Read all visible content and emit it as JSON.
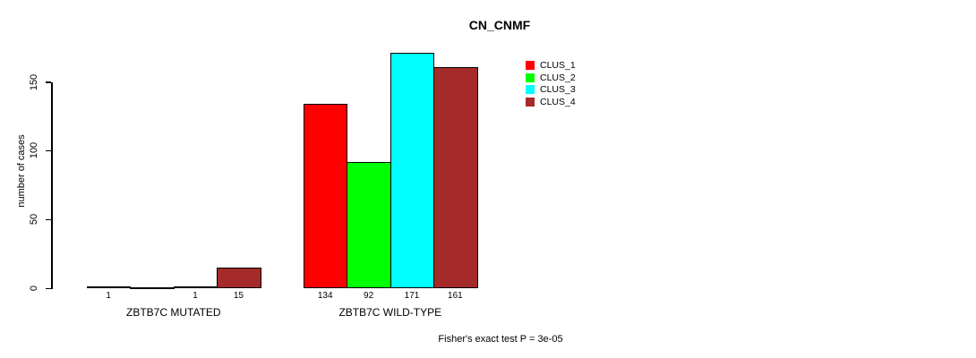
{
  "chart_data": {
    "type": "bar",
    "title": "CN_CNMF",
    "xlabel": "",
    "ylabel": "number of cases",
    "categories": [
      "ZBTB7C MUTATED",
      "ZBTB7C WILD-TYPE"
    ],
    "series": [
      {
        "name": "CLUS_1",
        "color": "#ff0000",
        "values": [
          1,
          134
        ]
      },
      {
        "name": "CLUS_2",
        "color": "#00ff00",
        "values": [
          0,
          92
        ]
      },
      {
        "name": "CLUS_3",
        "color": "#00ffff",
        "values": [
          1,
          171
        ]
      },
      {
        "name": "CLUS_4",
        "color": "#a52a2a",
        "values": [
          15,
          161
        ]
      }
    ],
    "bar_value_labels": [
      [
        "1",
        "",
        "1",
        "15"
      ],
      [
        "134",
        "92",
        "171",
        "161"
      ]
    ],
    "yticks": [
      0,
      50,
      100,
      150
    ],
    "ylim": [
      0,
      171
    ],
    "grid": false,
    "legend_position": "top-right",
    "legend_entries": [
      "CLUS_1",
      "CLUS_2",
      "CLUS_3",
      "CLUS_4"
    ],
    "annotation": "Fisher's exact test P = 3e-05",
    "colors": {
      "axis": "#000000",
      "bar_border": "#000000",
      "text": "#000000",
      "background": "#ffffff"
    }
  }
}
